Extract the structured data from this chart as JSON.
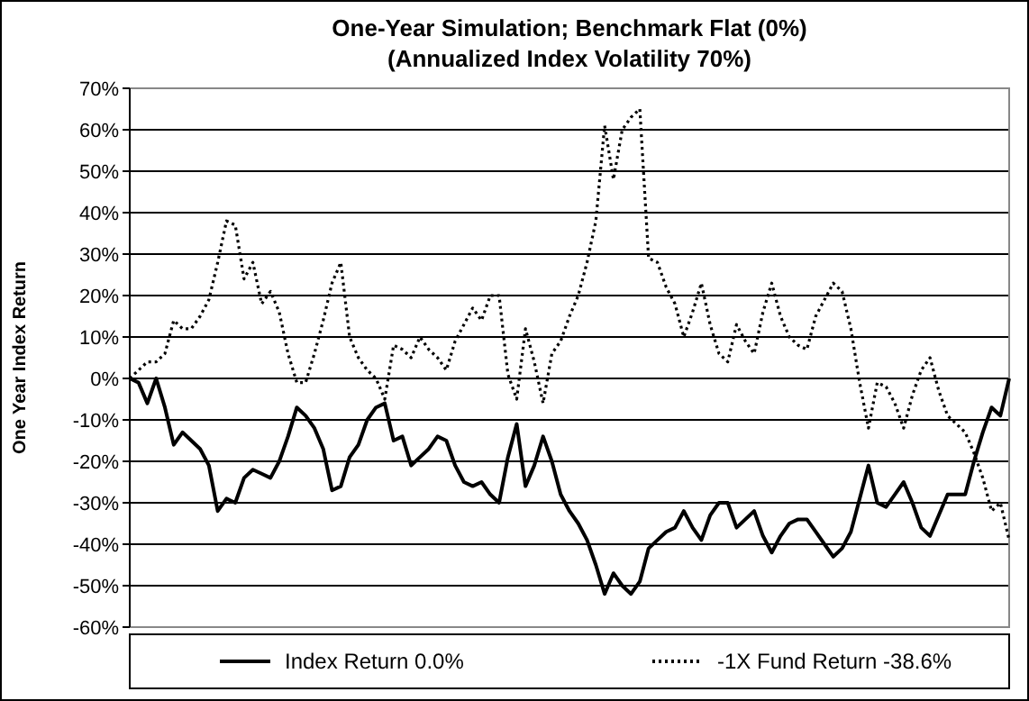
{
  "chart_data": {
    "type": "line",
    "title": "One-Year Simulation; Benchmark Flat (0%)",
    "subtitle": "(Annualized Index Volatility 70%)",
    "ylabel": "One Year Index Return",
    "categories": [
      null,
      null,
      null,
      null,
      null,
      null,
      null,
      null,
      null,
      null,
      null,
      null,
      null,
      null,
      null,
      null,
      null,
      null,
      null,
      null,
      null,
      null,
      null,
      null,
      null,
      null,
      null,
      null,
      null,
      null,
      null,
      null,
      null,
      null,
      null,
      null,
      null,
      null,
      null,
      null,
      null,
      null,
      null,
      null,
      null,
      null,
      null,
      null,
      null,
      null,
      null,
      null,
      null,
      null,
      null,
      null,
      null,
      null,
      null,
      null,
      null,
      null,
      null,
      null,
      null,
      null,
      null,
      null,
      null,
      null,
      null,
      null,
      null,
      null,
      null,
      null,
      null,
      null,
      null,
      null,
      null,
      null,
      null,
      null,
      null,
      null,
      null,
      null,
      null,
      null,
      null,
      null,
      null,
      null,
      null,
      null,
      null,
      null,
      null,
      null,
      null
    ],
    "ylim": [
      -60,
      70
    ],
    "yticks": [
      {
        "value": -60,
        "label": "-60%"
      },
      {
        "value": -50,
        "label": "-50%"
      },
      {
        "value": -40,
        "label": "-40%"
      },
      {
        "value": -30,
        "label": "-30%"
      },
      {
        "value": -20,
        "label": "-20%"
      },
      {
        "value": -10,
        "label": "-10%"
      },
      {
        "value": 0,
        "label": "0%"
      },
      {
        "value": 10,
        "label": "10%"
      },
      {
        "value": 20,
        "label": "20%"
      },
      {
        "value": 30,
        "label": "30%"
      },
      {
        "value": 40,
        "label": "40%"
      },
      {
        "value": 50,
        "label": "50%"
      },
      {
        "value": 60,
        "label": "60%"
      },
      {
        "value": 70,
        "label": "70%"
      }
    ],
    "tick_labels": "y",
    "grid": "y",
    "legend": "bottom",
    "marker": "none",
    "series": [
      {
        "name": "Index Return 0.0%",
        "color": "#000000",
        "line_style": "solid",
        "values": [
          0,
          -1,
          -6,
          0,
          -7,
          -16,
          -13,
          -15,
          -17,
          -21,
          -32,
          -29,
          -30,
          -24,
          -22,
          -23,
          -24,
          -20,
          -14,
          -7,
          -9,
          -12,
          -17,
          -27,
          -26,
          -19,
          -16,
          -10,
          -7,
          -6,
          -15,
          -14,
          -21,
          -19,
          -17,
          -14,
          -15,
          -21,
          -25,
          -26,
          -25,
          -28,
          -30,
          -19,
          -11,
          -26,
          -21,
          -14,
          -20,
          -28,
          -32,
          -35,
          -39,
          -45,
          -52,
          -47,
          -50,
          -52,
          -49,
          -41,
          -39,
          -37,
          -36,
          -32,
          -36,
          -39,
          -33,
          -30,
          -30,
          -36,
          -34,
          -32,
          -38,
          -42,
          -38,
          -35,
          -34,
          -34,
          -37,
          -40,
          -43,
          -41,
          -37,
          -29,
          -21,
          -30,
          -31,
          -28,
          -25,
          -30,
          -36,
          -38,
          -33,
          -28,
          -28,
          -28,
          -20,
          -13,
          -7,
          -9,
          0
        ]
      },
      {
        "name": "-1X Fund Return -38.6%",
        "color": "#000000",
        "line_style": "dotted",
        "values": [
          0,
          2,
          4,
          4,
          6,
          14,
          12,
          12,
          15,
          19,
          28,
          38,
          37,
          24,
          28,
          18,
          21,
          16,
          6,
          -1,
          -1,
          6,
          14,
          23,
          28,
          10,
          5,
          2,
          0,
          -5,
          8,
          7,
          5,
          10,
          7,
          5,
          2,
          9,
          13,
          17,
          14,
          20,
          20,
          1,
          -5,
          12,
          4,
          -6,
          6,
          9,
          15,
          20,
          28,
          38,
          61,
          48,
          60,
          63,
          65,
          29,
          28,
          22,
          18,
          10,
          16,
          23,
          13,
          6,
          4,
          13,
          9,
          6,
          16,
          23,
          15,
          10,
          8,
          7,
          15,
          19,
          23,
          21,
          12,
          -1,
          -12,
          -1,
          -2,
          -6,
          -12,
          -4,
          2,
          5,
          -3,
          -9,
          -11,
          -13,
          -18,
          -24,
          -32,
          -30,
          -39
        ]
      }
    ]
  }
}
